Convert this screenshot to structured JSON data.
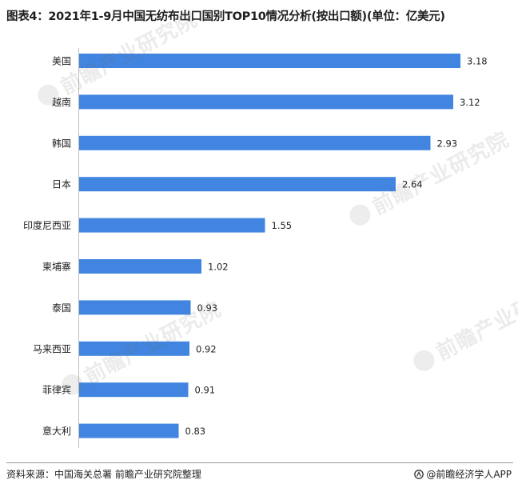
{
  "title": "图表4：2021年1-9月中国无纺布出口国别TOP10情况分析(按出口额)(单位：亿美元)",
  "source": "资料来源：中国海关总署 前瞻产业研究院整理",
  "brand": "@前瞻经济学人APP",
  "watermark_text": "前瞻产业研究院",
  "colors": {
    "bar": "#4185E0",
    "text": "#222222"
  },
  "chart_data": {
    "type": "bar",
    "orientation": "horizontal",
    "title": "图表4：2021年1-9月中国无纺布出口国别TOP10情况分析(按出口额)(单位：亿美元)",
    "categories": [
      "美国",
      "越南",
      "韩国",
      "日本",
      "印度尼西亚",
      "柬埔寨",
      "泰国",
      "马来西亚",
      "菲律宾",
      "意大利"
    ],
    "values": [
      3.18,
      3.12,
      2.93,
      2.64,
      1.55,
      1.02,
      0.93,
      0.92,
      0.91,
      0.83
    ],
    "value_labels": [
      "3.18",
      "3.12",
      "2.93",
      "2.64",
      "1.55",
      "1.02",
      "0.93",
      "0.92",
      "0.91",
      "0.83"
    ],
    "xlim": [
      0,
      3.18
    ],
    "grid": false,
    "legend": "none"
  }
}
